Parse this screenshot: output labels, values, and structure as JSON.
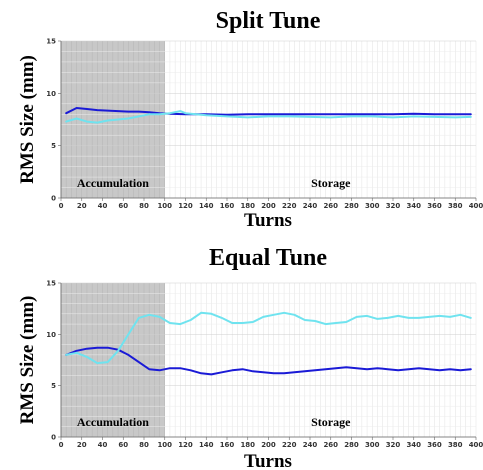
{
  "chart_data": [
    {
      "type": "line",
      "title": "Split Tune",
      "xlabel": "Turns",
      "ylabel": "RMS Size (mm)",
      "xlim": [
        0,
        400
      ],
      "ylim": [
        0,
        15
      ],
      "x_ticks": [
        "0",
        "20",
        "40",
        "60",
        "80",
        "100",
        "120",
        "140",
        "160",
        "180",
        "200",
        "220",
        "240",
        "260",
        "280",
        "300",
        "320",
        "340",
        "360",
        "380",
        "400"
      ],
      "y_ticks": [
        "0",
        "5",
        "10",
        "15"
      ],
      "grid": true,
      "shaded_region": {
        "x_start": 0,
        "x_end": 100,
        "color": "#c8c8c8"
      },
      "region_labels": [
        {
          "text": "Accumulation",
          "x": 50
        },
        {
          "text": "Storage",
          "x": 260
        }
      ],
      "series": [
        {
          "color": "#1a1ad6",
          "x": [
            5,
            15,
            25,
            35,
            45,
            55,
            65,
            75,
            85,
            95,
            105,
            120,
            140,
            160,
            180,
            200,
            220,
            240,
            260,
            280,
            300,
            320,
            340,
            360,
            380,
            395
          ],
          "y": [
            8.1,
            8.6,
            8.5,
            8.4,
            8.35,
            8.3,
            8.25,
            8.25,
            8.2,
            8.1,
            8.05,
            8.0,
            8.0,
            7.95,
            8.0,
            8.0,
            8.0,
            8.0,
            8.0,
            8.0,
            8.0,
            8.0,
            8.05,
            8.0,
            8.0,
            8.0
          ]
        },
        {
          "color": "#6fe3ef",
          "x": [
            5,
            15,
            25,
            35,
            45,
            55,
            65,
            75,
            85,
            95,
            105,
            115,
            120,
            140,
            160,
            180,
            200,
            220,
            240,
            260,
            280,
            300,
            320,
            340,
            360,
            380,
            395
          ],
          "y": [
            7.3,
            7.6,
            7.3,
            7.2,
            7.4,
            7.5,
            7.6,
            7.8,
            8.0,
            8.0,
            8.1,
            8.3,
            8.1,
            7.9,
            7.8,
            7.7,
            7.8,
            7.8,
            7.75,
            7.7,
            7.8,
            7.8,
            7.7,
            7.8,
            7.75,
            7.7,
            7.75
          ]
        }
      ]
    },
    {
      "type": "line",
      "title": "Equal Tune",
      "xlabel": "Turns",
      "ylabel": "RMS Size (mm)",
      "xlim": [
        0,
        400
      ],
      "ylim": [
        0,
        15
      ],
      "x_ticks": [
        "0",
        "20",
        "40",
        "60",
        "80",
        "100",
        "120",
        "140",
        "160",
        "180",
        "200",
        "220",
        "240",
        "260",
        "280",
        "300",
        "320",
        "340",
        "360",
        "380",
        "400"
      ],
      "y_ticks": [
        "0",
        "5",
        "10",
        "15"
      ],
      "grid": true,
      "shaded_region": {
        "x_start": 0,
        "x_end": 100,
        "color": "#c8c8c8"
      },
      "region_labels": [
        {
          "text": "Accumulation",
          "x": 50
        },
        {
          "text": "Storage",
          "x": 260
        }
      ],
      "series": [
        {
          "color": "#1a1ad6",
          "x": [
            5,
            15,
            25,
            35,
            45,
            55,
            65,
            75,
            85,
            95,
            105,
            115,
            125,
            135,
            145,
            155,
            165,
            175,
            185,
            195,
            205,
            215,
            225,
            235,
            245,
            255,
            265,
            275,
            285,
            295,
            305,
            315,
            325,
            335,
            345,
            355,
            365,
            375,
            385,
            395
          ],
          "y": [
            8.0,
            8.4,
            8.6,
            8.7,
            8.7,
            8.5,
            8.0,
            7.3,
            6.6,
            6.5,
            6.7,
            6.7,
            6.5,
            6.2,
            6.1,
            6.3,
            6.5,
            6.6,
            6.4,
            6.3,
            6.2,
            6.2,
            6.3,
            6.4,
            6.5,
            6.6,
            6.7,
            6.8,
            6.7,
            6.6,
            6.7,
            6.6,
            6.5,
            6.6,
            6.7,
            6.6,
            6.5,
            6.6,
            6.5,
            6.6
          ]
        },
        {
          "color": "#6fe3ef",
          "x": [
            5,
            15,
            25,
            35,
            45,
            55,
            65,
            75,
            85,
            95,
            105,
            115,
            125,
            135,
            145,
            155,
            165,
            175,
            185,
            195,
            205,
            215,
            225,
            235,
            245,
            255,
            265,
            275,
            285,
            295,
            305,
            315,
            325,
            335,
            345,
            355,
            365,
            375,
            385,
            395
          ],
          "y": [
            8.0,
            8.2,
            7.8,
            7.2,
            7.3,
            8.4,
            10.0,
            11.6,
            11.9,
            11.7,
            11.1,
            11.0,
            11.4,
            12.1,
            12.0,
            11.6,
            11.1,
            11.1,
            11.2,
            11.7,
            11.9,
            12.1,
            11.9,
            11.4,
            11.3,
            11.0,
            11.1,
            11.2,
            11.7,
            11.8,
            11.5,
            11.6,
            11.8,
            11.6,
            11.6,
            11.7,
            11.8,
            11.7,
            11.9,
            11.6
          ]
        }
      ]
    }
  ]
}
